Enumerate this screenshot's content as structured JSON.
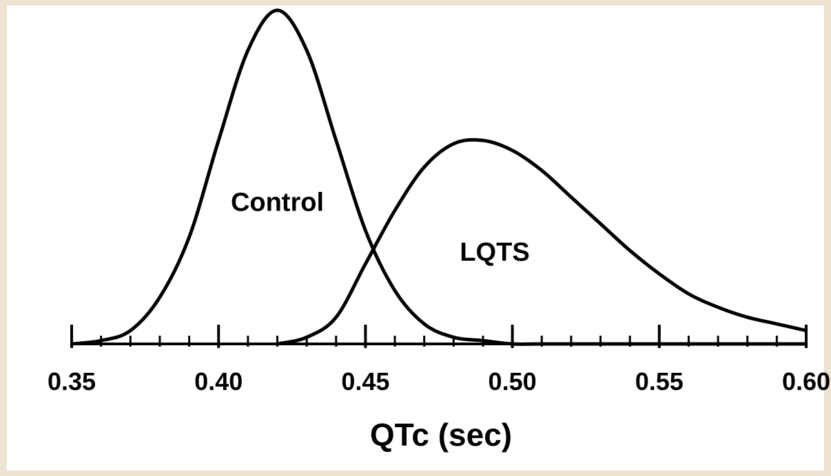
{
  "chart_data": {
    "type": "line",
    "x_label": "QTc (sec)",
    "x": [
      0.35,
      0.36,
      0.37,
      0.38,
      0.39,
      0.4,
      0.41,
      0.42,
      0.43,
      0.44,
      0.45,
      0.46,
      0.47,
      0.48,
      0.49,
      0.5,
      0.51,
      0.52,
      0.53,
      0.54,
      0.55,
      0.56,
      0.57,
      0.58,
      0.59,
      0.6
    ],
    "series": [
      {
        "name": "Control",
        "color": "#000000",
        "values": [
          0.0,
          0.01,
          0.04,
          0.14,
          0.32,
          0.61,
          0.88,
          1.0,
          0.88,
          0.61,
          0.34,
          0.16,
          0.06,
          0.02,
          0.01,
          0.0,
          0.0,
          0.0,
          0.0,
          0.0,
          0.0,
          0.0,
          0.0,
          0.0,
          0.0,
          0.0
        ]
      },
      {
        "name": "LQTS",
        "color": "#000000",
        "values": [
          null,
          null,
          null,
          null,
          null,
          null,
          null,
          0.0,
          0.02,
          0.08,
          0.24,
          0.4,
          0.53,
          0.6,
          0.61,
          0.58,
          0.52,
          0.44,
          0.36,
          0.28,
          0.21,
          0.15,
          0.11,
          0.08,
          0.06,
          0.04
        ]
      }
    ],
    "annotations": [
      {
        "text": "Control",
        "x": 0.42,
        "y": 0.42
      },
      {
        "text": "LQTS",
        "x": 0.494,
        "y": 0.27
      }
    ],
    "xlim": [
      0.35,
      0.6
    ],
    "xticks": [
      {
        "value": 0.35,
        "label": "0.35"
      },
      {
        "value": 0.4,
        "label": "0.40"
      },
      {
        "value": 0.45,
        "label": "0.45"
      },
      {
        "value": 0.5,
        "label": "0.50"
      },
      {
        "value": 0.55,
        "label": "0.55"
      },
      {
        "value": 0.6,
        "label": "0.60"
      }
    ],
    "xticks_minor": [
      0.36,
      0.37,
      0.38,
      0.39,
      0.41,
      0.42,
      0.43,
      0.44,
      0.46,
      0.47,
      0.48,
      0.49,
      0.51,
      0.52,
      0.53,
      0.54,
      0.56,
      0.57,
      0.58,
      0.59
    ],
    "ylim": [
      0,
      1
    ],
    "grid": false
  }
}
